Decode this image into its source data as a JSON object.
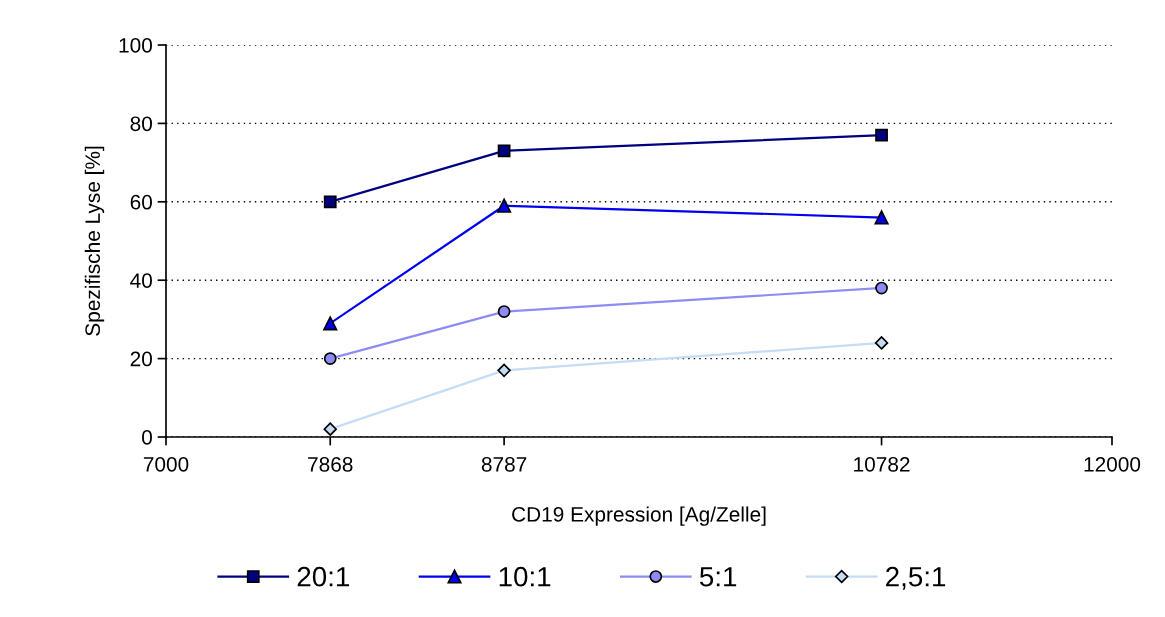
{
  "chart_data": {
    "type": "line",
    "xlabel": "CD19 Expression [Ag/Zelle]",
    "ylabel": "Spezifische Lyse [%]",
    "x": [
      7868,
      8787,
      10782
    ],
    "xlim": [
      7000,
      12000
    ],
    "xticks": [
      7000,
      7868,
      8787,
      10782,
      12000
    ],
    "ylim": [
      0,
      100
    ],
    "yticks": [
      0,
      20,
      40,
      60,
      80,
      100
    ],
    "grid": "y",
    "legend": "bottom",
    "line_style": "solid",
    "series": [
      {
        "name": "20:1",
        "color": "#000080",
        "marker": "square",
        "values": [
          60,
          73,
          77
        ]
      },
      {
        "name": "10:1",
        "color": "#0000ee",
        "marker": "triangle",
        "values": [
          29,
          59,
          56
        ]
      },
      {
        "name": "5:1",
        "color": "#8c8cf4",
        "marker": "circle",
        "values": [
          20,
          32,
          38
        ]
      },
      {
        "name": "2,5:1",
        "color": "#c4dcf4",
        "marker": "diamond",
        "values": [
          2,
          17,
          24
        ]
      }
    ]
  }
}
